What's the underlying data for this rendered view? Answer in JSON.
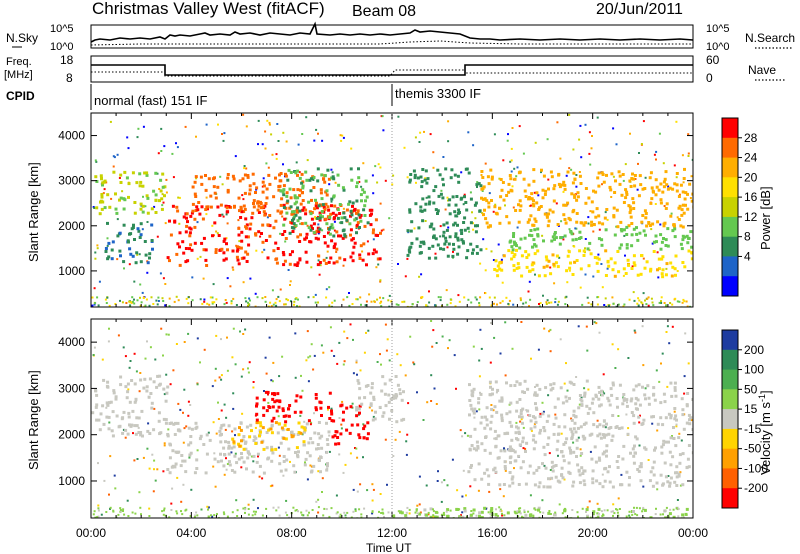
{
  "header": {
    "title": "Christmas Valley West (fitACF)",
    "beam": "Beam 08",
    "date": "20/Jun/2011"
  },
  "nsky_panel": {
    "left_label": "N.Sky",
    "right_label": "N.Search",
    "left_ticks": [
      "10^5",
      "10^0"
    ],
    "right_ticks": [
      "10^5",
      "10^0"
    ]
  },
  "freq_panel": {
    "left_label_1": "Freq.",
    "left_label_2": "[MHz]",
    "right_label": "Nave",
    "left_ticks": [
      "18",
      "8"
    ],
    "right_ticks": [
      "60",
      "0"
    ]
  },
  "cpid_panel": {
    "label": "CPID",
    "modes": [
      {
        "name": "normal (fast) 151 IF",
        "start_hour": 0,
        "end_hour": 12
      },
      {
        "name": "themis 3300 IF",
        "start_hour": 12,
        "end_hour": 24
      }
    ]
  },
  "power_colorbar": {
    "label": "Power [dB]",
    "ticks": [
      "28",
      "24",
      "20",
      "16",
      "12",
      "8",
      "4"
    ],
    "colors": [
      "#ff0000",
      "#ff6a00",
      "#ffae00",
      "#ffe000",
      "#c8d200",
      "#64c850",
      "#2e8b57",
      "#1e64c8",
      "#0000ff"
    ]
  },
  "velocity_colorbar": {
    "label": "Velocity [m s",
    "label_sup": "-1",
    "label_close": "]",
    "ticks": [
      "200",
      "100",
      "50",
      "15",
      "-15",
      "-50",
      "-100",
      "-200"
    ],
    "colors": [
      "#1e3ca0",
      "#2e8b57",
      "#4caf50",
      "#8bd34a",
      "#c8c8c0",
      "#ffd400",
      "#ffa000",
      "#ff6000",
      "#ff0000"
    ]
  },
  "x_axis": {
    "title": "Time UT",
    "ticks": [
      "00:00",
      "04:00",
      "08:00",
      "12:00",
      "16:00",
      "20:00",
      "00:00"
    ]
  },
  "y_axis": {
    "title": "Slant Range [km]",
    "ticks": [
      "1000",
      "2000",
      "3000",
      "4000"
    ]
  },
  "chart_data": [
    {
      "type": "heatmap",
      "quantity": "Power",
      "units": "dB",
      "xlabel": "Time UT",
      "ylabel": "Slant Range [km]",
      "xlim_hours": [
        0,
        24
      ],
      "ylim_km": [
        200,
        4500
      ],
      "color_range": [
        0,
        30
      ],
      "bands": [
        {
          "t0": 0.0,
          "t1": 2.9,
          "r0": 2300,
          "r1": 3250,
          "value": 14
        },
        {
          "t0": 0.5,
          "t1": 2.5,
          "r0": 1200,
          "r1": 2100,
          "value": 7
        },
        {
          "t0": 3.0,
          "t1": 11.5,
          "r0": 1150,
          "r1": 2500,
          "value": 27
        },
        {
          "t0": 4.0,
          "t1": 9.5,
          "r0": 2300,
          "r1": 3200,
          "value": 25
        },
        {
          "t0": 7.5,
          "t1": 11.0,
          "r0": 1800,
          "r1": 3300,
          "value": 10
        },
        {
          "t0": 12.5,
          "t1": 15.5,
          "r0": 1300,
          "r1": 3300,
          "value": 8
        },
        {
          "t0": 15.5,
          "t1": 24.0,
          "r0": 2000,
          "r1": 3300,
          "value": 22
        },
        {
          "t0": 16.0,
          "t1": 24.0,
          "r0": 900,
          "r1": 1500,
          "value": 19
        },
        {
          "t0": 16.5,
          "t1": 24.0,
          "r0": 1500,
          "r1": 2000,
          "value": 12
        }
      ]
    },
    {
      "type": "heatmap",
      "quantity": "Velocity",
      "units": "m s-1",
      "xlabel": "Time UT",
      "ylabel": "Slant Range [km]",
      "xlim_hours": [
        0,
        24
      ],
      "ylim_km": [
        200,
        4500
      ],
      "color_range": [
        -200,
        200
      ],
      "bands": [
        {
          "t0": 0.0,
          "t1": 3.0,
          "r0": 2000,
          "r1": 3300,
          "value": 0
        },
        {
          "t0": 3.0,
          "t1": 9.5,
          "r0": 1200,
          "r1": 2300,
          "value": 0
        },
        {
          "t0": 5.5,
          "t1": 8.5,
          "r0": 1700,
          "r1": 2300,
          "value": -60
        },
        {
          "t0": 6.5,
          "t1": 9.5,
          "r0": 2300,
          "r1": 3000,
          "value": -200
        },
        {
          "t0": 9.5,
          "t1": 11.0,
          "r0": 1800,
          "r1": 2700,
          "value": -180
        },
        {
          "t0": 10.5,
          "t1": 12.5,
          "r0": 2300,
          "r1": 3300,
          "value": 0
        },
        {
          "t0": 15.0,
          "t1": 24.0,
          "r0": 900,
          "r1": 3200,
          "value": 0
        },
        {
          "t0": 12.0,
          "t1": 24.0,
          "r0": 200,
          "r1": 450,
          "value": 30
        }
      ]
    }
  ]
}
